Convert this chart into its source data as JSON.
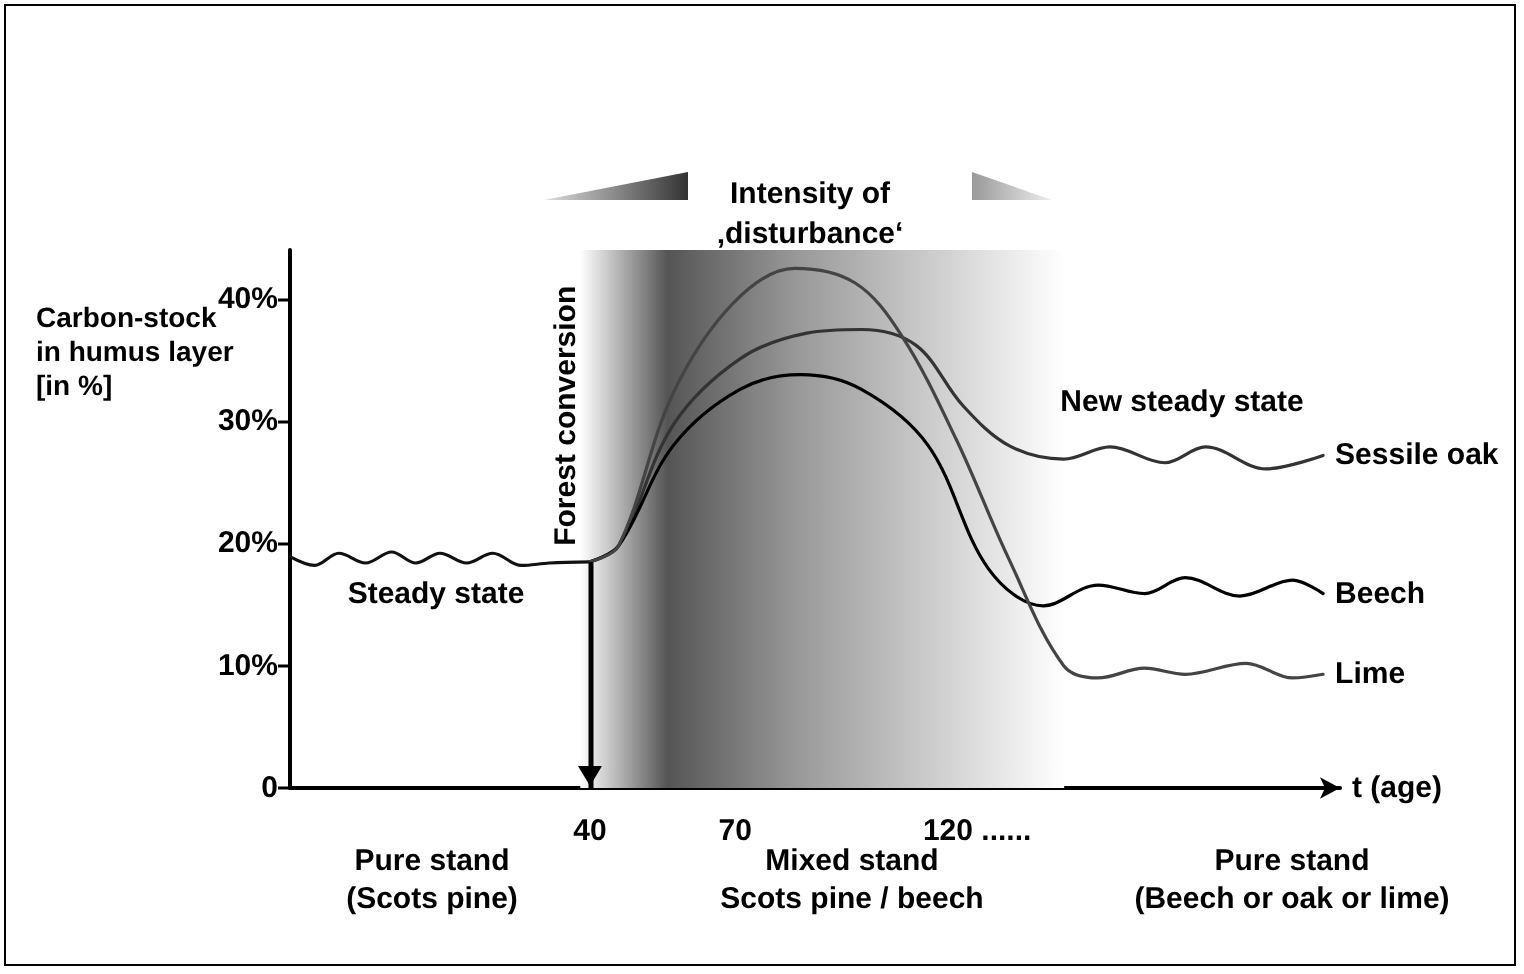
{
  "chart_data": {
    "type": "line",
    "title": "Intensity of\n‚disturbance‘",
    "ylabel": "Carbon-stock\nin humus layer\n[in %]",
    "xlabel": "t (age)",
    "xlim": [
      -22,
      195
    ],
    "xticks": [
      40,
      70,
      {
        "value": 120,
        "label": "120 ......"
      }
    ],
    "ylim": [
      0,
      44
    ],
    "yticks": [
      {
        "value": 0,
        "label": "0"
      },
      {
        "value": 10,
        "label": "10%"
      },
      {
        "value": 20,
        "label": "20%"
      },
      {
        "value": 30,
        "label": "30%"
      },
      {
        "value": 40,
        "label": "40%"
      }
    ],
    "grid": false,
    "legend": false,
    "marker": "none",
    "line_style": "solid",
    "series": [
      {
        "color": "#111111",
        "x": [
          -21.9,
          -16.9,
          -11.9,
          -6.4,
          -1,
          4,
          9,
          14.5,
          19.9,
          25.8,
          31.6,
          40
        ],
        "values": [
          18.9,
          18.2,
          19.2,
          18.4,
          19.3,
          18.4,
          19.2,
          18.4,
          19.2,
          18.2,
          18.4,
          18.5
        ]
      },
      {
        "name": "Sessile oak",
        "color": "#333333",
        "x": [
          40,
          45.9,
          57.2,
          71.0,
          84.8,
          96.1,
          107.4,
          117.0,
          126.6,
          137.9,
          147.5,
          158.8,
          167.2,
          179.7,
          191.5
        ],
        "values": [
          18.5,
          19.8,
          29.7,
          35.1,
          37.2,
          37.5,
          36.2,
          31.3,
          28.0,
          26.9,
          27.9,
          26.6,
          27.9,
          26.1,
          27.2
        ]
      },
      {
        "name": "Beech",
        "color": "#000000",
        "x": [
          40,
          45.9,
          57.2,
          71.0,
          83.5,
          96.1,
          109.9,
          122.4,
          133.7,
          145.0,
          154.6,
          163.0,
          174.3,
          185.2,
          191.5
        ],
        "values": [
          18.5,
          19.8,
          28.0,
          32.6,
          33.8,
          32.6,
          28.0,
          17.9,
          14.9,
          16.6,
          15.9,
          17.2,
          15.7,
          17.0,
          15.9
        ]
      },
      {
        "name": "Lime",
        "color": "#444444",
        "x": [
          40,
          45.9,
          57.2,
          69.7,
          82.3,
          94.8,
          104.4,
          115.7,
          126.6,
          137.9,
          145.0,
          154.6,
          163.0,
          175.6,
          185.2,
          191.5
        ],
        "values": [
          18.5,
          19.8,
          32.3,
          39.7,
          42.5,
          41.3,
          37.0,
          28.5,
          18.7,
          10.0,
          9.0,
          9.8,
          9.3,
          10.2,
          9.0,
          9.3
        ]
      }
    ],
    "ref_lines": [
      {
        "axis": "x",
        "value": 40,
        "label": "Forest conversion"
      }
    ],
    "bands": [
      {
        "axis": "x",
        "from": 38,
        "to": 138,
        "color": "#555555"
      }
    ],
    "annotations": [
      "Steady state",
      "New steady state",
      "Pure stand\n(Scots pine)",
      "Mixed stand\nScots pine / beech",
      "Pure stand\n(Beech or oak or lime)"
    ]
  }
}
